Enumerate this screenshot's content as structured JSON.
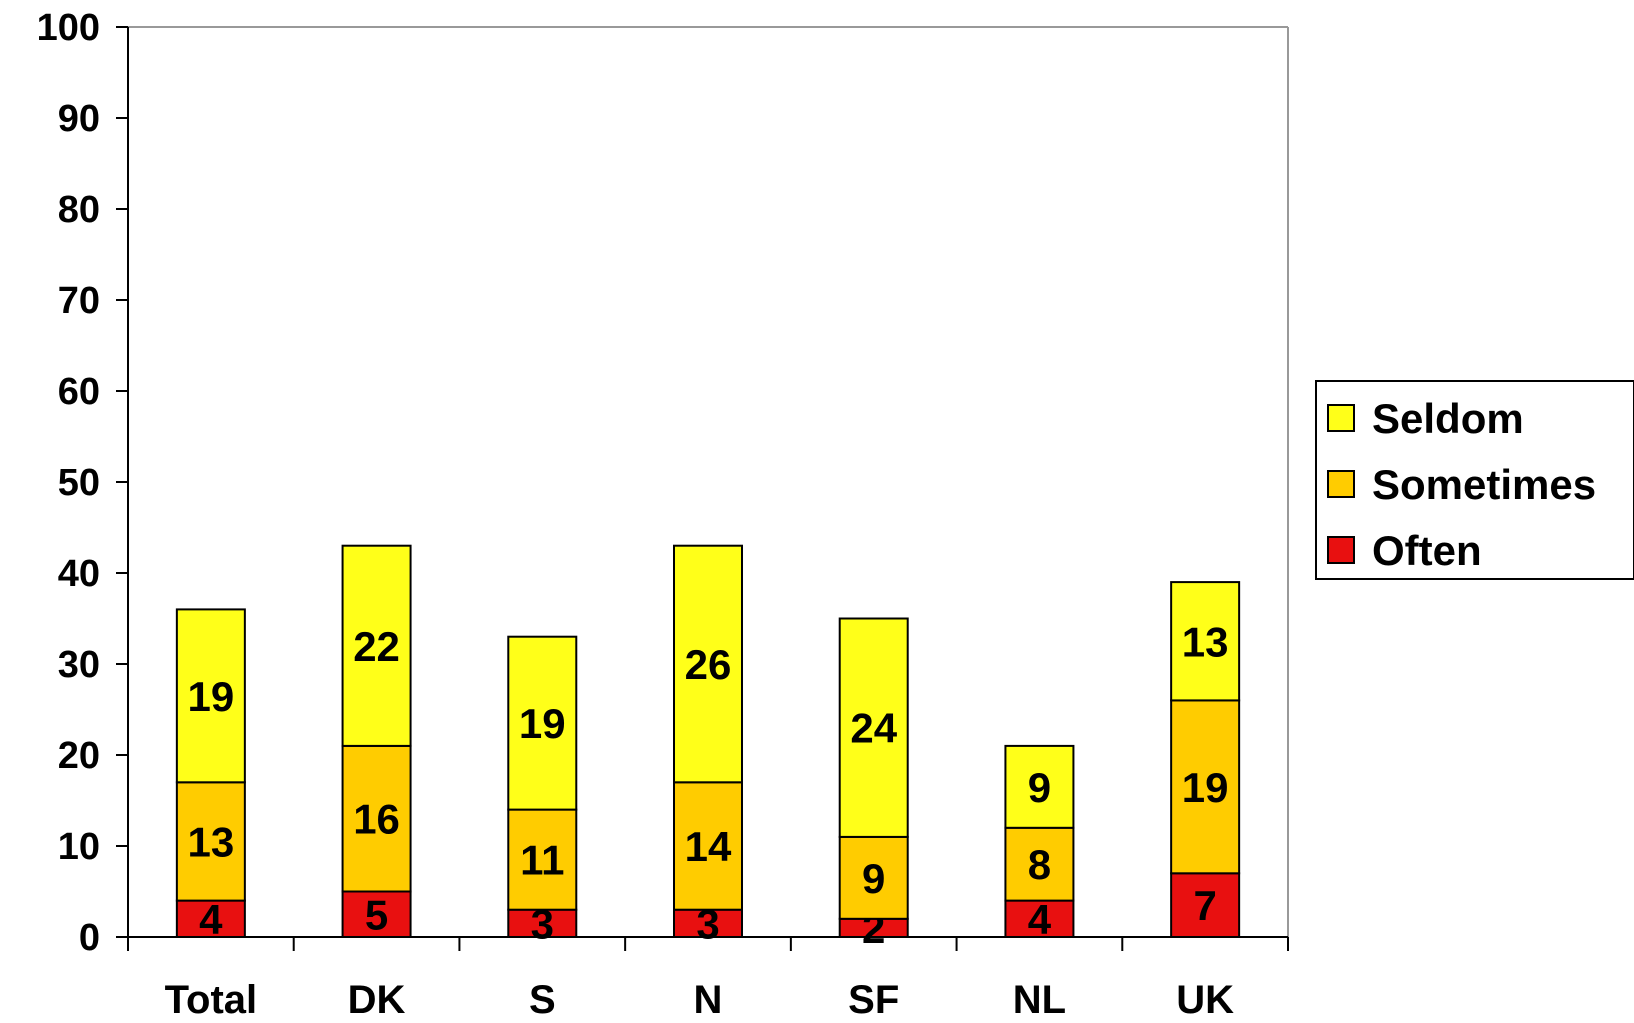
{
  "chart_data": {
    "type": "bar",
    "stacked": true,
    "categories": [
      "Total",
      "DK",
      "S",
      "N",
      "SF",
      "NL",
      "UK"
    ],
    "series": [
      {
        "name": "Often",
        "values": [
          4,
          5,
          3,
          3,
          2,
          4,
          7
        ],
        "color": "#e81010"
      },
      {
        "name": "Sometimes",
        "values": [
          13,
          16,
          11,
          14,
          9,
          8,
          19
        ],
        "color": "#ffcc00"
      },
      {
        "name": "Seldom",
        "values": [
          19,
          22,
          19,
          26,
          24,
          9,
          13
        ],
        "color": "#ffff19"
      }
    ],
    "yticks": [
      0,
      10,
      20,
      30,
      40,
      50,
      60,
      70,
      80,
      90,
      100
    ],
    "ylim": [
      0,
      100
    ],
    "legend_order": [
      "Seldom",
      "Sometimes",
      "Often"
    ],
    "legend_position": "right",
    "grid": false
  }
}
